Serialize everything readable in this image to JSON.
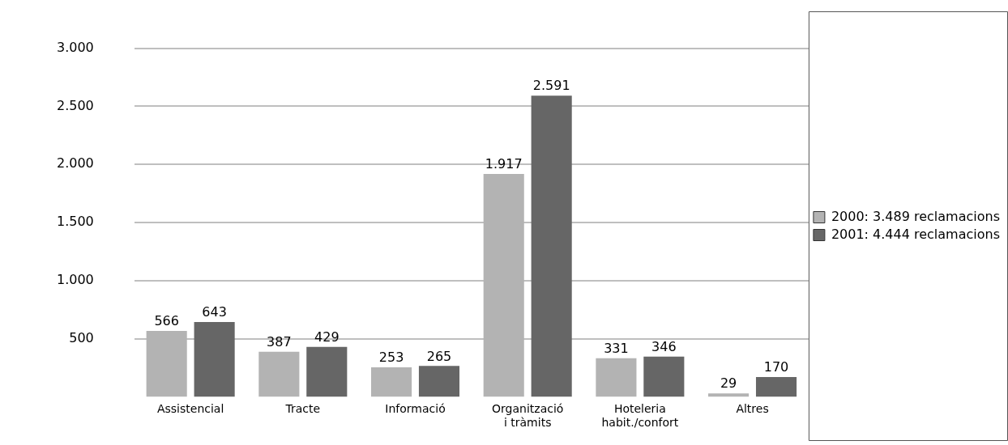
{
  "chart_data": {
    "type": "bar",
    "categories": [
      "Assistencial",
      "Tracte",
      "Informació",
      "Organització i tràmits",
      "Hoteleria habit./confort",
      "Altres"
    ],
    "series": [
      {
        "name": "2000: 3.489 reclamacions",
        "color": "#b3b3b3",
        "values": [
          566,
          387,
          253,
          1917,
          331,
          29
        ],
        "value_labels": [
          "566",
          "387",
          "253",
          "1.917",
          "331",
          "29"
        ]
      },
      {
        "name": "2001: 4.444 reclamacions",
        "color": "#666666",
        "values": [
          643,
          429,
          265,
          2591,
          346,
          170
        ],
        "value_labels": [
          "643",
          "429",
          "265",
          "2.591",
          "346",
          "170"
        ]
      }
    ],
    "ylim": [
      0,
      3000
    ],
    "yticks": [
      {
        "value": 500,
        "label": "500"
      },
      {
        "value": 1000,
        "label": "1.000"
      },
      {
        "value": 1500,
        "label": "1.500"
      },
      {
        "value": 2000,
        "label": "2.000"
      },
      {
        "value": 2500,
        "label": "2.500"
      },
      {
        "value": 3000,
        "label": "3.000"
      }
    ],
    "grid": "y",
    "legend": "right"
  }
}
